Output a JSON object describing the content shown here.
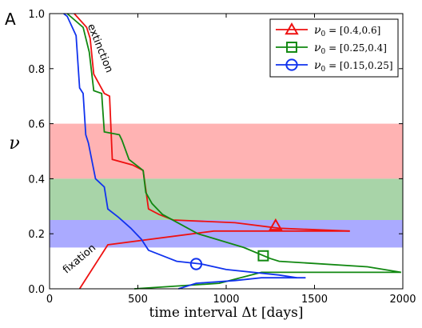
{
  "panel_label": "A",
  "chart_data": {
    "type": "line",
    "title": "",
    "xlabel": "time interval Δt [days]",
    "ylabel": "ν",
    "xlim": [
      0,
      2000
    ],
    "ylim": [
      0.0,
      1.0
    ],
    "xticks": [
      "0",
      "500",
      "1000",
      "1500",
      "2000"
    ],
    "yticks": [
      "0.0",
      "0.2",
      "0.4",
      "0.6",
      "0.8",
      "1.0"
    ],
    "xtick_values": [
      0,
      500,
      1000,
      1500,
      2000
    ],
    "ytick_values": [
      0.0,
      0.2,
      0.4,
      0.6,
      0.8,
      1.0
    ],
    "grid": false,
    "legend_position": "top-right",
    "bands": [
      {
        "y0": 0.4,
        "y1": 0.6,
        "color": "#ffb3b3"
      },
      {
        "y0": 0.25,
        "y1": 0.4,
        "color": "#a8d4a8"
      },
      {
        "y0": 0.15,
        "y1": 0.25,
        "color": "#aaaaff"
      }
    ],
    "annotations": [
      {
        "text": "extinction",
        "x": 270,
        "y": 0.87,
        "rotation": 68
      },
      {
        "text": "fixation",
        "x": 180,
        "y": 0.1,
        "rotation": -40
      }
    ],
    "series": [
      {
        "name": "ν₀ = [0.4,0.6]",
        "legend_math": "ν",
        "legend_sub": "0",
        "legend_range": " = [0.4,0.6]",
        "color": "#ee1111",
        "marker": "triangle",
        "marker_point": [
          1280,
          0.23
        ],
        "extinction": [
          [
            140,
            1.0
          ],
          [
            210,
            0.95
          ],
          [
            230,
            0.91
          ],
          [
            250,
            0.78
          ],
          [
            310,
            0.71
          ],
          [
            340,
            0.7
          ],
          [
            355,
            0.47
          ],
          [
            470,
            0.45
          ],
          [
            530,
            0.43
          ],
          [
            560,
            0.29
          ],
          [
            620,
            0.27
          ],
          [
            700,
            0.25
          ],
          [
            1050,
            0.24
          ],
          [
            1300,
            0.22
          ],
          [
            1700,
            0.21
          ]
        ],
        "fixation": [
          [
            170,
            0.0
          ],
          [
            330,
            0.16
          ],
          [
            930,
            0.21
          ],
          [
            1700,
            0.21
          ]
        ]
      },
      {
        "name": "ν₀ = [0.25,0.4]",
        "legend_math": "ν",
        "legend_sub": "0",
        "legend_range": " = [0.25,0.4]",
        "color": "#118811",
        "marker": "square",
        "marker_point": [
          1210,
          0.12
        ],
        "extinction": [
          [
            100,
            1.0
          ],
          [
            190,
            0.95
          ],
          [
            225,
            0.86
          ],
          [
            245,
            0.75
          ],
          [
            250,
            0.72
          ],
          [
            295,
            0.71
          ],
          [
            310,
            0.57
          ],
          [
            395,
            0.56
          ],
          [
            410,
            0.54
          ],
          [
            450,
            0.47
          ],
          [
            530,
            0.43
          ],
          [
            545,
            0.35
          ],
          [
            580,
            0.31
          ],
          [
            640,
            0.27
          ],
          [
            840,
            0.2
          ],
          [
            1100,
            0.15
          ],
          [
            1250,
            0.11
          ],
          [
            1300,
            0.1
          ],
          [
            1800,
            0.08
          ],
          [
            1990,
            0.06
          ]
        ],
        "fixation": [
          [
            480,
            0.0
          ],
          [
            960,
            0.02
          ],
          [
            1200,
            0.06
          ],
          [
            1990,
            0.06
          ]
        ]
      },
      {
        "name": "ν₀ = [0.15,0.25]",
        "legend_math": "ν",
        "legend_sub": "0",
        "legend_range": " = [0.15,0.25]",
        "color": "#1133ee",
        "marker": "circle",
        "marker_point": [
          830,
          0.09
        ],
        "extinction": [
          [
            80,
            1.0
          ],
          [
            100,
            0.99
          ],
          [
            150,
            0.92
          ],
          [
            170,
            0.73
          ],
          [
            190,
            0.71
          ],
          [
            205,
            0.56
          ],
          [
            220,
            0.53
          ],
          [
            260,
            0.4
          ],
          [
            310,
            0.37
          ],
          [
            330,
            0.29
          ],
          [
            390,
            0.26
          ],
          [
            460,
            0.22
          ],
          [
            520,
            0.18
          ],
          [
            560,
            0.14
          ],
          [
            640,
            0.12
          ],
          [
            720,
            0.1
          ],
          [
            860,
            0.09
          ],
          [
            1000,
            0.07
          ],
          [
            1300,
            0.05
          ],
          [
            1400,
            0.04
          ]
        ],
        "fixation": [
          [
            730,
            0.0
          ],
          [
            830,
            0.02
          ],
          [
            1050,
            0.03
          ],
          [
            1200,
            0.04
          ],
          [
            1450,
            0.04
          ]
        ]
      }
    ]
  }
}
